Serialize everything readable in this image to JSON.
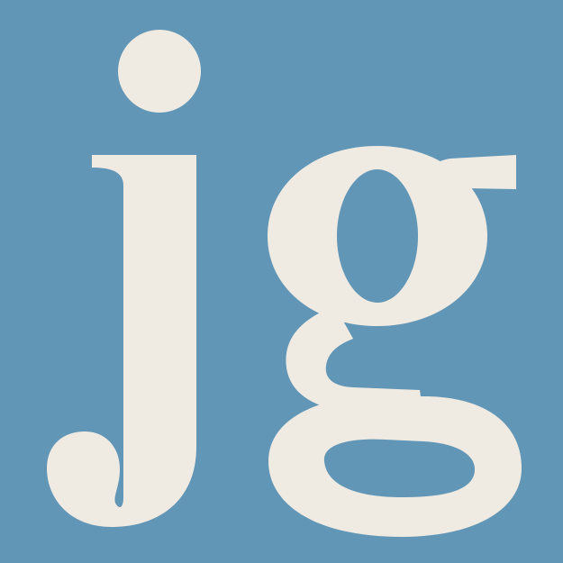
{
  "logo": {
    "lettering": "jg",
    "background_color": "#6296B7",
    "glyph_color": "#EFEBE2",
    "counter_color": "#6296B7"
  }
}
